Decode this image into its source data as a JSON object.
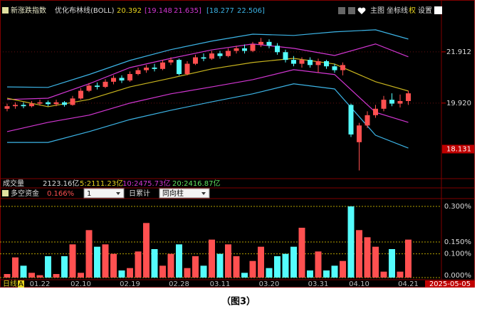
{
  "header": {
    "index_name": "新涨跌指数",
    "indicator": "优化布林线(BOLL)",
    "mid": "20.392",
    "band1_lo": "[19.148",
    "band1_hi": "21.635]",
    "band2_lo": "[18.277",
    "band2_hi": "22.506]",
    "buttons": [
      "主图",
      "坐标线",
      "权",
      "设置"
    ]
  },
  "main_chart": {
    "type": "candlestick",
    "ylim": [
      17.01,
      23.32
    ],
    "yticks": [
      21.912,
      {
        "value": 19.92,
        "label": "19.920"
      }
    ],
    "highlight_tick": 18.131,
    "up_color": "#ff5050",
    "down_color": "#54fcfc",
    "candles": {
      "open": [
        19.7,
        19.8,
        19.85,
        19.8,
        19.9,
        19.95,
        19.88,
        19.95,
        19.85,
        20.1,
        20.4,
        20.6,
        20.55,
        20.75,
        20.9,
        20.8,
        21.05,
        21.2,
        21.3,
        21.25,
        21.5,
        21.6,
        21.05,
        21.45,
        21.7,
        21.65,
        21.85,
        21.75,
        21.95,
        22.05,
        21.95,
        22.2,
        22.3,
        22.15,
        21.9,
        21.6,
        21.45,
        21.6,
        21.4,
        21.55,
        21.35,
        21.2,
        19.85,
        18.4,
        19.05,
        19.45,
        19.7,
        20.05,
        19.9,
        20.0
      ],
      "high": [
        19.9,
        19.95,
        19.95,
        20.0,
        20.05,
        20.02,
        20.05,
        20.0,
        20.2,
        20.5,
        20.7,
        20.72,
        20.85,
        21.0,
        21.0,
        21.15,
        21.3,
        21.4,
        21.45,
        21.6,
        21.7,
        21.65,
        21.55,
        21.8,
        21.85,
        21.95,
        21.95,
        22.05,
        22.15,
        22.2,
        22.3,
        22.45,
        22.4,
        22.25,
        22.0,
        21.75,
        21.7,
        21.7,
        21.65,
        21.6,
        21.45,
        21.5,
        19.9,
        19.15,
        19.6,
        19.85,
        20.2,
        20.3,
        20.25,
        20.4
      ],
      "low": [
        19.6,
        19.7,
        19.72,
        19.75,
        19.82,
        19.8,
        19.8,
        19.78,
        19.82,
        20.05,
        20.35,
        20.45,
        20.5,
        20.65,
        20.7,
        20.75,
        21.0,
        21.1,
        21.15,
        21.2,
        21.4,
        21.0,
        21.0,
        21.4,
        21.55,
        21.6,
        21.65,
        21.7,
        21.85,
        21.85,
        21.9,
        22.1,
        22.05,
        21.8,
        21.5,
        21.35,
        21.3,
        21.3,
        21.1,
        21.25,
        21.1,
        21.0,
        18.6,
        17.3,
        18.95,
        19.35,
        19.6,
        19.8,
        19.75,
        19.85
      ],
      "close": [
        19.8,
        19.85,
        19.8,
        19.9,
        19.95,
        19.88,
        19.95,
        19.85,
        20.1,
        20.4,
        20.6,
        20.55,
        20.75,
        20.9,
        20.8,
        21.05,
        21.2,
        21.3,
        21.25,
        21.5,
        21.6,
        21.05,
        21.45,
        21.7,
        21.65,
        21.85,
        21.75,
        21.95,
        22.05,
        21.95,
        22.2,
        22.3,
        22.15,
        21.9,
        21.6,
        21.45,
        21.6,
        21.4,
        21.55,
        21.35,
        21.2,
        21.4,
        18.7,
        19.05,
        19.45,
        19.7,
        20.05,
        19.9,
        20.0,
        20.3
      ]
    },
    "lines": [
      {
        "color": "#3cb4e6",
        "x": [
          0,
          5,
          10,
          15,
          20,
          25,
          30,
          35,
          40,
          45,
          49
        ],
        "values": [
          20.55,
          20.53,
          21.03,
          21.58,
          22.0,
          22.33,
          22.6,
          22.55,
          22.69,
          22.77,
          22.41
        ]
      },
      {
        "color": "#d236d2",
        "x": [
          0,
          5,
          10,
          15,
          20,
          25,
          30,
          35,
          40,
          45,
          49
        ],
        "values": [
          20.06,
          20.11,
          20.67,
          21.3,
          21.66,
          21.99,
          22.22,
          22.05,
          21.77,
          22.22,
          21.72
        ]
      },
      {
        "color": "#c8b41e",
        "x": [
          0,
          5,
          10,
          15,
          20,
          25,
          30,
          35,
          40,
          45,
          49
        ],
        "values": [
          20.11,
          19.78,
          20.06,
          20.55,
          20.89,
          21.25,
          21.5,
          21.66,
          21.44,
          20.75,
          20.39
        ]
      },
      {
        "color": "#d236d2",
        "x": [
          0,
          5,
          10,
          15,
          20,
          25,
          30,
          35,
          40,
          45,
          49
        ],
        "values": [
          18.81,
          19.17,
          19.45,
          19.92,
          20.28,
          20.55,
          20.83,
          21.22,
          21.03,
          19.56,
          19.17
        ]
      },
      {
        "color": "#3cb4e6",
        "x": [
          0,
          5,
          10,
          15,
          20,
          25,
          30,
          35,
          40,
          45,
          49
        ],
        "values": [
          18.39,
          18.39,
          18.81,
          19.28,
          19.64,
          19.97,
          20.28,
          20.67,
          20.47,
          18.67,
          18.17
        ]
      }
    ]
  },
  "volume_row": {
    "label": "成交量",
    "value": "2123.16亿",
    "ma5": "5:2111.23亿",
    "ma10": "10:2475.73亿",
    "ma20": "20:2416.87亿"
  },
  "fund_panel": {
    "title": "多空资金",
    "value": "0.166%",
    "period": "1",
    "mode_label": "日累计",
    "mode": "同向柱",
    "type": "bar",
    "ylim": [
      0,
      0.3
    ],
    "yticks": [
      {
        "value": 0.3,
        "label": "0.300%"
      },
      {
        "value": 0.15,
        "label": "0.150%"
      },
      {
        "value": 0.1,
        "label": "0.100%"
      },
      {
        "value": 0,
        "label": "0.000%"
      }
    ],
    "values": [
      0.015,
      0.085,
      0.05,
      0.02,
      0.01,
      0.09,
      0.015,
      0.09,
      0.14,
      0.02,
      0.2,
      0.13,
      0.14,
      0.1,
      0.03,
      0.04,
      0.11,
      0.23,
      0.12,
      0.05,
      0.1,
      0.14,
      0.04,
      0.09,
      0.05,
      0.16,
      0.1,
      0.14,
      0.09,
      0.02,
      0.07,
      0.13,
      0.04,
      0.09,
      0.1,
      0.13,
      0.21,
      0.03,
      0.11,
      0.03,
      0.05,
      0.07,
      0.3,
      0.2,
      0.17,
      0.13,
      0.025,
      0.12,
      0.025,
      0.16
    ]
  },
  "footer": {
    "period": "日线",
    "flag": "A",
    "date": "2025-05-05",
    "categories": [
      null,
      null,
      null,
      null,
      "01.22",
      null,
      null,
      null,
      null,
      "02.10",
      null,
      null,
      null,
      null,
      null,
      "02.19",
      null,
      null,
      null,
      null,
      null,
      "02.28",
      null,
      null,
      null,
      null,
      "03.11",
      null,
      null,
      null,
      null,
      null,
      "03.20",
      null,
      null,
      null,
      null,
      null,
      "03.31",
      null,
      null,
      null,
      null,
      "04.10",
      null,
      null,
      null,
      null,
      null,
      "04.21"
    ]
  },
  "caption": "（图3）"
}
